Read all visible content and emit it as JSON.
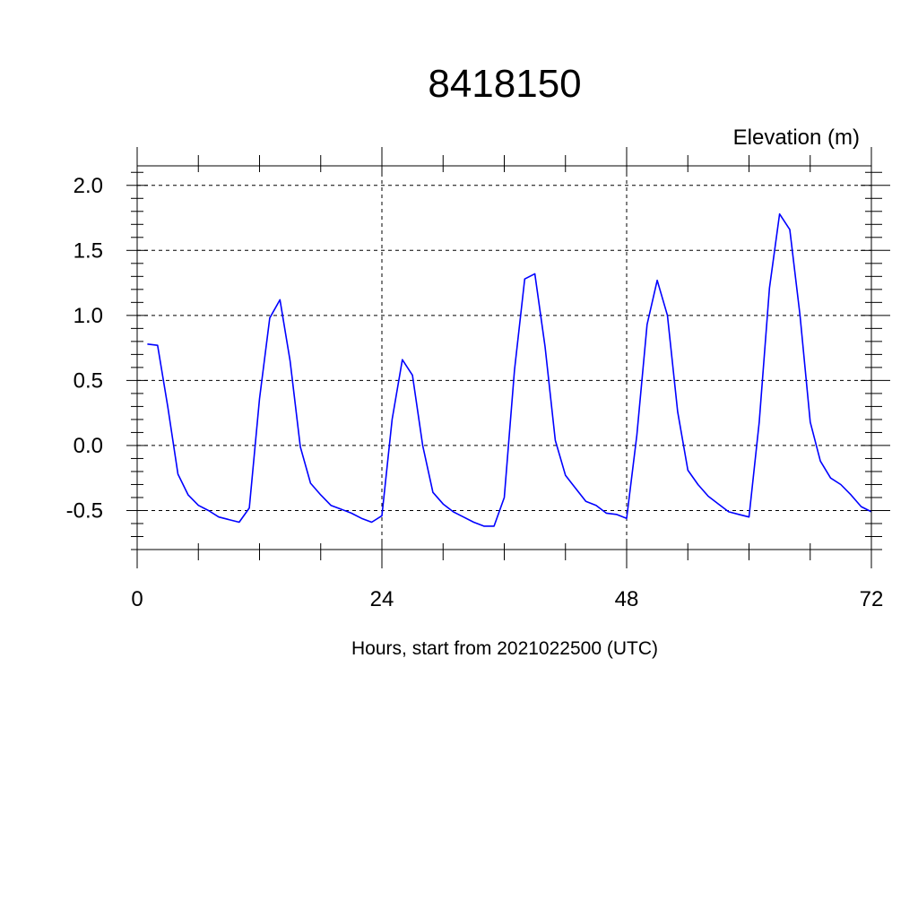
{
  "chart_data": {
    "type": "line",
    "title": "8418150",
    "ylabel": "Elevation (m)",
    "xlabel": "Hours, start from 2021022500 (UTC)",
    "xlim": [
      0,
      72
    ],
    "ylim": [
      -0.8,
      2.15
    ],
    "x_ticks": [
      0,
      24,
      48,
      72
    ],
    "x_tick_labels": [
      "0",
      "24",
      "48",
      "72"
    ],
    "y_ticks": [
      2.0,
      1.5,
      1.0,
      0.5,
      0.0,
      -0.5
    ],
    "y_tick_labels": [
      "2.0",
      "1.5",
      "1.0",
      "0.5",
      "0.0",
      "-0.5"
    ],
    "grid": true,
    "grid_style": "dashed",
    "series": [
      {
        "color": "#0000ff",
        "x": [
          1,
          2,
          3,
          4,
          5,
          6,
          7,
          8,
          9,
          10,
          11,
          12,
          13,
          14,
          15,
          16,
          17,
          18,
          19,
          20,
          21,
          22,
          23,
          24,
          25,
          26,
          27,
          28,
          29,
          30,
          31,
          32,
          33,
          34,
          35,
          36,
          37,
          38,
          39,
          40,
          41,
          42,
          43,
          44,
          45,
          46,
          47,
          48,
          49,
          50,
          51,
          52,
          53,
          54,
          55,
          56,
          57,
          58,
          59,
          60,
          61,
          62,
          63,
          64,
          65,
          66,
          67,
          68,
          69,
          70,
          71,
          72
        ],
        "values": [
          0.78,
          0.77,
          0.3,
          -0.22,
          -0.38,
          -0.46,
          -0.5,
          -0.55,
          -0.57,
          -0.59,
          -0.48,
          0.36,
          0.98,
          1.12,
          0.65,
          -0.01,
          -0.29,
          -0.38,
          -0.46,
          -0.49,
          -0.52,
          -0.56,
          -0.59,
          -0.54,
          0.2,
          0.66,
          0.54,
          0.0,
          -0.36,
          -0.45,
          -0.51,
          -0.55,
          -0.59,
          -0.62,
          -0.62,
          -0.4,
          0.58,
          1.28,
          1.32,
          0.76,
          0.04,
          -0.23,
          -0.33,
          -0.43,
          -0.46,
          -0.52,
          -0.53,
          -0.56,
          0.08,
          0.93,
          1.27,
          1.0,
          0.26,
          -0.19,
          -0.3,
          -0.39,
          -0.45,
          -0.51,
          -0.53,
          -0.55,
          0.18,
          1.21,
          1.78,
          1.66,
          1.0,
          0.18,
          -0.12,
          -0.25,
          -0.3,
          -0.38,
          -0.47,
          -0.51
        ]
      }
    ]
  }
}
